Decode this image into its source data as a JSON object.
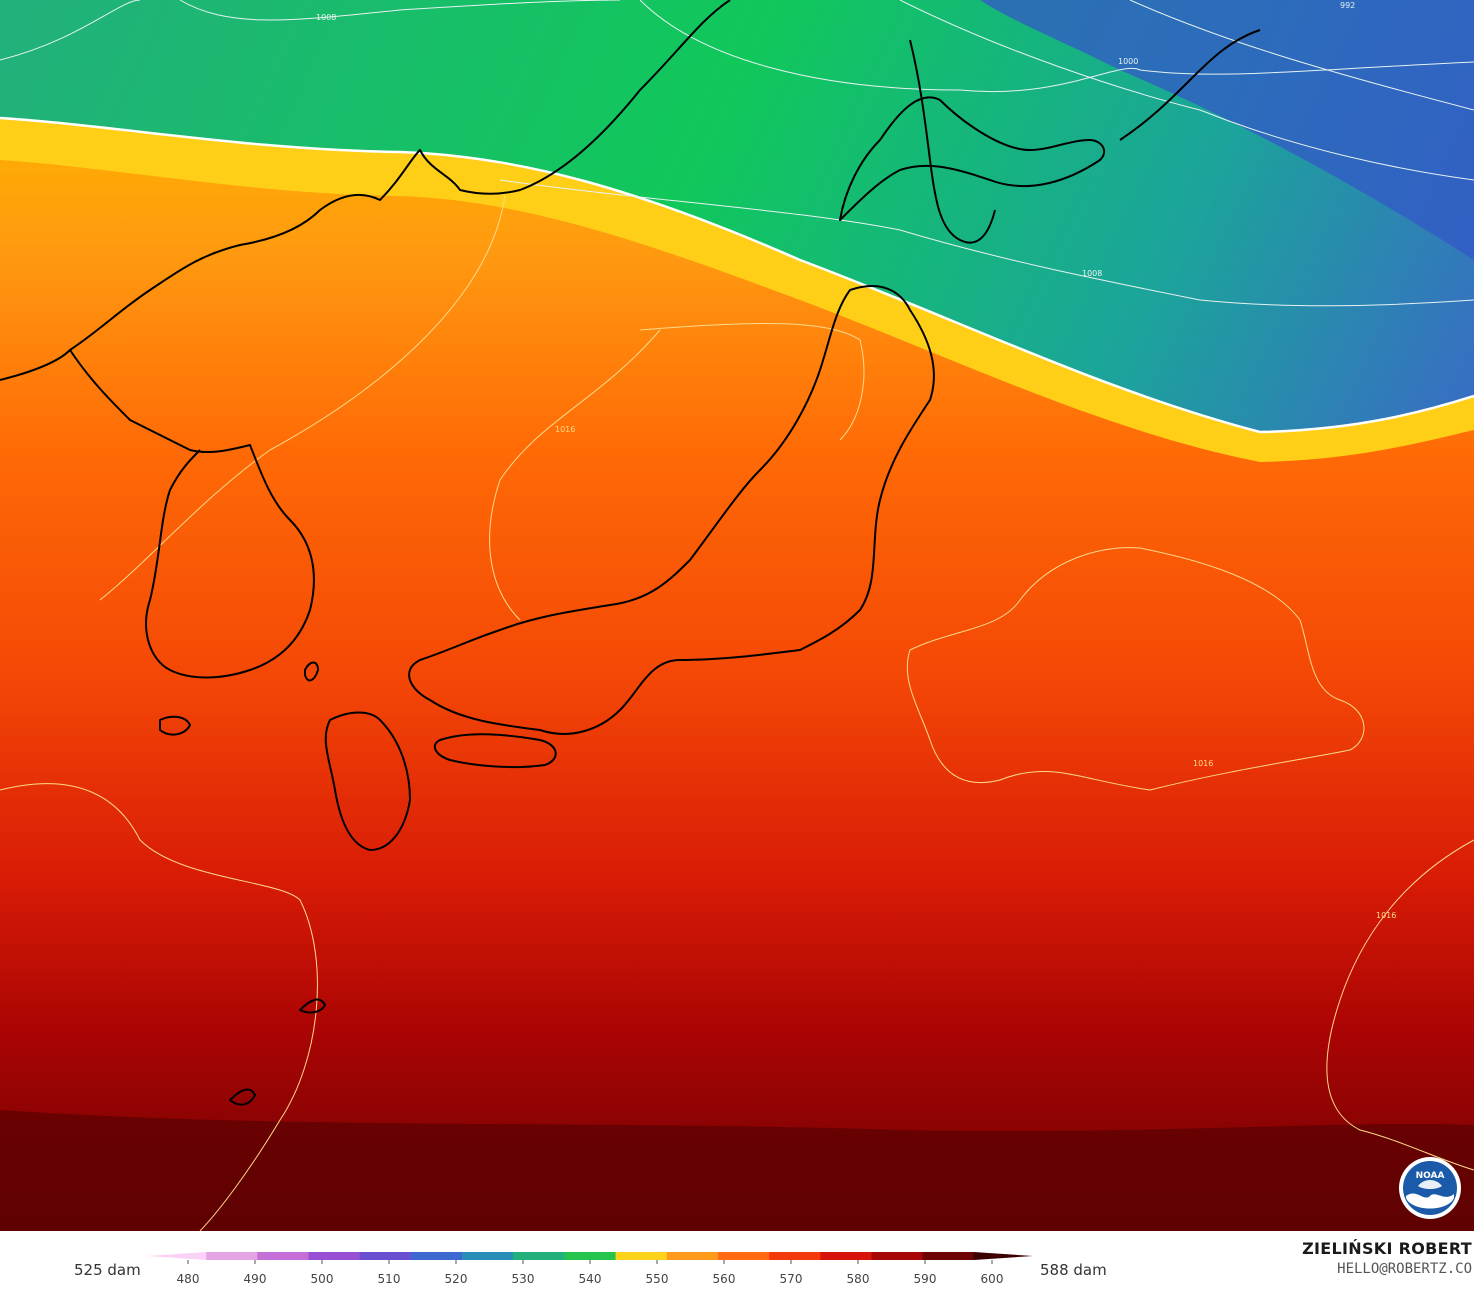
{
  "map": {
    "isobar_labels": [
      {
        "text": "1008",
        "color": "#e6f2f2"
      },
      {
        "text": "1000",
        "color": "#e6f2f2"
      },
      {
        "text": "992",
        "color": "#e6f2f2"
      },
      {
        "text": "1008",
        "color": "#e6f2f2"
      },
      {
        "text": "1016",
        "color": "#ffd98a"
      },
      {
        "text": "1016",
        "color": "#ffd98a"
      },
      {
        "text": "1016",
        "color": "#ffd98a"
      }
    ]
  },
  "legend": {
    "min_label": "525 dam",
    "max_label": "588 dam",
    "ticks": [
      "480",
      "490",
      "500",
      "510",
      "520",
      "530",
      "540",
      "550",
      "560",
      "570",
      "580",
      "590",
      "600"
    ],
    "colors": [
      "#f9d3f5",
      "#e6a3e4",
      "#c56ed7",
      "#9a50d5",
      "#6a4fd0",
      "#3e67cf",
      "#2a8fb8",
      "#23b07c",
      "#25c44d",
      "#ffd31a",
      "#ff9a1a",
      "#ff6a12",
      "#f33a0c",
      "#d8140a",
      "#a80606",
      "#6d0303",
      "#3a0000"
    ]
  },
  "credits": {
    "author": "ZIELIŃSKI ROBERT",
    "email": "HELLO@ROBERTZ.CO",
    "logo_text": "NOAA"
  }
}
